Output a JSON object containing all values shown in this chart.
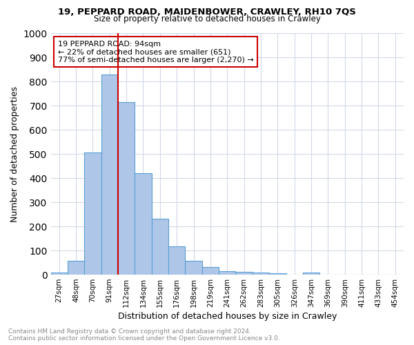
{
  "title1": "19, PEPPARD ROAD, MAIDENBOWER, CRAWLEY, RH10 7QS",
  "title2": "Size of property relative to detached houses in Crawley",
  "xlabel": "Distribution of detached houses by size in Crawley",
  "ylabel": "Number of detached properties",
  "bins": [
    "27sqm",
    "48sqm",
    "70sqm",
    "91sqm",
    "112sqm",
    "134sqm",
    "155sqm",
    "176sqm",
    "198sqm",
    "219sqm",
    "241sqm",
    "262sqm",
    "283sqm",
    "305sqm",
    "326sqm",
    "347sqm",
    "369sqm",
    "390sqm",
    "411sqm",
    "433sqm",
    "454sqm"
  ],
  "values": [
    8,
    58,
    505,
    828,
    713,
    420,
    232,
    117,
    57,
    32,
    15,
    13,
    10,
    5,
    0,
    8,
    0,
    0,
    0,
    0,
    0
  ],
  "bar_color": "#aec6e8",
  "bar_edge_color": "#5a9fd4",
  "vline_x_index": 3,
  "vline_color": "#cc0000",
  "annotation_text": "19 PEPPARD ROAD: 94sqm\n← 22% of detached houses are smaller (651)\n77% of semi-detached houses are larger (2,270) →",
  "annotation_box_color": "#ffffff",
  "annotation_box_edge": "#cc0000",
  "ylim": [
    0,
    1000
  ],
  "yticks": [
    0,
    100,
    200,
    300,
    400,
    500,
    600,
    700,
    800,
    900,
    1000
  ],
  "footer1": "Contains HM Land Registry data © Crown copyright and database right 2024.",
  "footer2": "Contains public sector information licensed under the Open Government Licence v3.0.",
  "bg_color": "#ffffff",
  "grid_color": "#d0d8e8"
}
